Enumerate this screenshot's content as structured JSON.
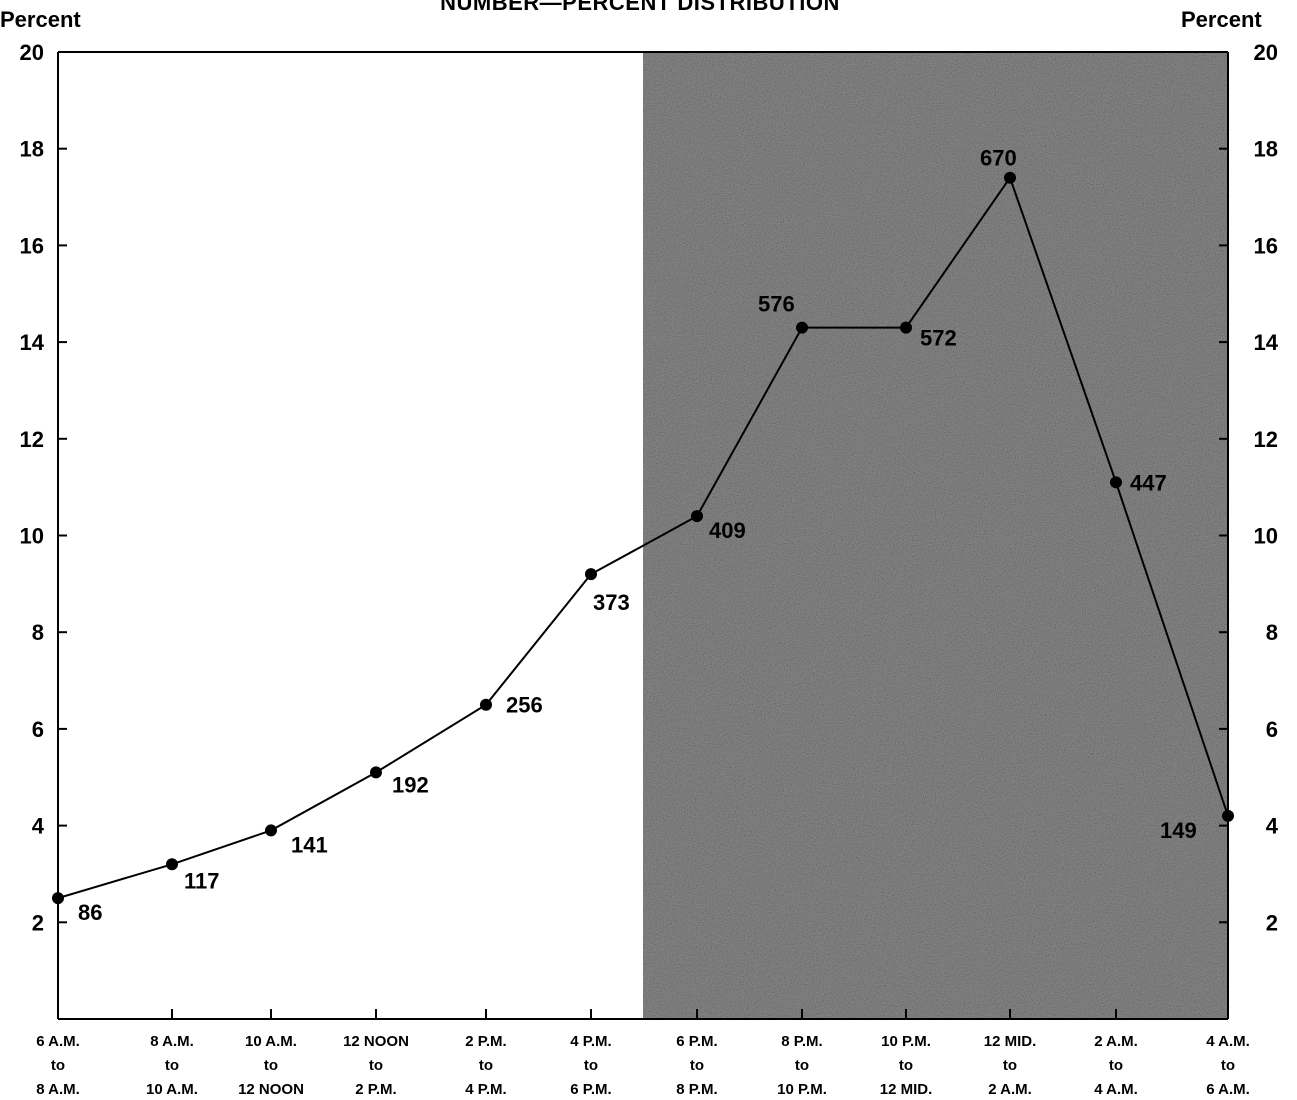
{
  "chart_data": {
    "type": "line",
    "title": "NUMBER—PERCENT  DISTRIBUTION",
    "ylabel_left": "Percent",
    "ylabel_right": "Percent",
    "ylim": [
      0,
      20
    ],
    "yticks": [
      2,
      4,
      6,
      8,
      10,
      12,
      14,
      16,
      18,
      20
    ],
    "grid": false,
    "shaded_region": {
      "from_category_index": 6,
      "to_category_index": 11,
      "color": "#8a8a8a"
    },
    "categories": [
      [
        "6 A.M.",
        "to",
        "8 A.M."
      ],
      [
        "8 A.M.",
        "to",
        "10 A.M."
      ],
      [
        "10 A.M.",
        "to",
        "12 NOON"
      ],
      [
        "12 NOON",
        "to",
        "2 P.M."
      ],
      [
        "2 P.M.",
        "to",
        "4 P.M."
      ],
      [
        "4 P.M.",
        "to",
        "6 P.M."
      ],
      [
        "6 P.M.",
        "to",
        "8 P.M."
      ],
      [
        "8 P.M.",
        "to",
        "10 P.M."
      ],
      [
        "10 P.M.",
        "to",
        "12 MID."
      ],
      [
        "12 MID.",
        "to",
        "2 A.M."
      ],
      [
        "2 A.M.",
        "to",
        "4 A.M."
      ],
      [
        "4 A.M.",
        "to",
        "6 A.M."
      ]
    ],
    "values": [
      2.5,
      3.2,
      3.9,
      5.1,
      6.5,
      9.2,
      10.4,
      14.3,
      14.3,
      17.4,
      11.1,
      4.2
    ],
    "data_labels": [
      "86",
      "117",
      "141",
      "192",
      "256",
      "373",
      "409",
      "576",
      "572",
      "670",
      "447",
      "149"
    ],
    "line_color": "#000000"
  }
}
